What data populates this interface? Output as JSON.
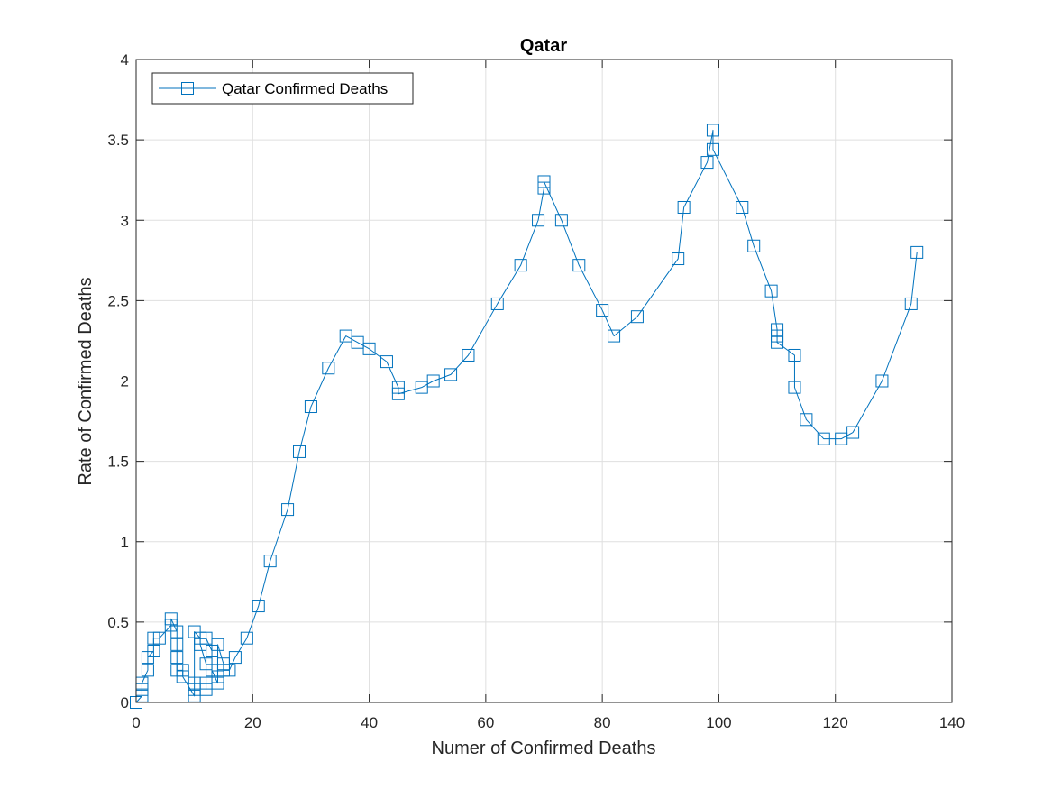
{
  "chart_data": {
    "type": "line",
    "title": "Qatar",
    "xlabel": "Numer of Confirmed Deaths",
    "ylabel": "Rate of Confirmed Deaths",
    "xlim": [
      0,
      140
    ],
    "ylim": [
      0,
      4
    ],
    "xticks": [
      0,
      20,
      40,
      60,
      80,
      100,
      120,
      140
    ],
    "yticks": [
      0,
      0.5,
      1,
      1.5,
      2,
      2.5,
      3,
      3.5,
      4
    ],
    "xtick_labels": [
      "0",
      "20",
      "40",
      "60",
      "80",
      "100",
      "120",
      "140"
    ],
    "ytick_labels": [
      "0",
      "0.5",
      "1",
      "1.5",
      "2",
      "2.5",
      "3",
      "3.5",
      "4"
    ],
    "grid": true,
    "legend_position": "top-left",
    "color": "#0072BD",
    "marker": "square",
    "series": [
      {
        "name": "Qatar Confirmed Deaths",
        "x": [
          0,
          1,
          1,
          1,
          2,
          2,
          3,
          3,
          4,
          6,
          6,
          7,
          7,
          7,
          7,
          8,
          8,
          10,
          10,
          10,
          10,
          11,
          11,
          12,
          12,
          12,
          12,
          13,
          13,
          14,
          14,
          14,
          15,
          15,
          16,
          17,
          19,
          21,
          23,
          26,
          28,
          30,
          33,
          36,
          38,
          40,
          43,
          45,
          45,
          49,
          51,
          54,
          57,
          62,
          66,
          69,
          70,
          70,
          73,
          76,
          80,
          82,
          86,
          93,
          94,
          98,
          99,
          99,
          104,
          106,
          109,
          110,
          110,
          110,
          113,
          113,
          115,
          118,
          121,
          123,
          128,
          133,
          134
        ],
        "y": [
          0,
          0.04,
          0.08,
          0.12,
          0.2,
          0.28,
          0.32,
          0.4,
          0.4,
          0.48,
          0.52,
          0.44,
          0.36,
          0.28,
          0.2,
          0.2,
          0.16,
          0.04,
          0.08,
          0.12,
          0.44,
          0.4,
          0.36,
          0.24,
          0.12,
          0.08,
          0.4,
          0.32,
          0.2,
          0.12,
          0.16,
          0.36,
          0.24,
          0.2,
          0.2,
          0.28,
          0.4,
          0.6,
          0.88,
          1.2,
          1.56,
          1.84,
          2.08,
          2.28,
          2.24,
          2.2,
          2.12,
          1.96,
          1.92,
          1.96,
          2.0,
          2.04,
          2.16,
          2.48,
          2.72,
          3.0,
          3.2,
          3.24,
          3.0,
          2.72,
          2.44,
          2.28,
          2.4,
          2.76,
          3.08,
          3.36,
          3.56,
          3.44,
          3.08,
          2.84,
          2.56,
          2.32,
          2.28,
          2.24,
          2.16,
          1.96,
          1.76,
          1.64,
          1.64,
          1.68,
          2.0,
          2.48,
          2.8
        ]
      }
    ]
  }
}
